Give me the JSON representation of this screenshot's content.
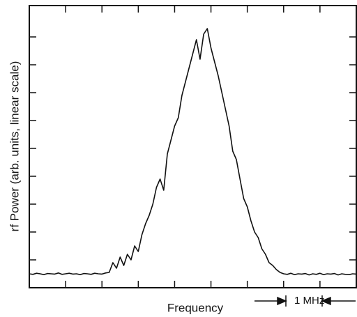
{
  "chart_data": {
    "type": "line",
    "x_label": "Frequency",
    "y_label": "rf Power (arb. units, linear scale)",
    "annotation": "1 MHz",
    "color": "#111111",
    "xlim": [
      0,
      9
    ],
    "xticks": [
      1,
      2,
      3,
      4,
      5,
      6,
      7,
      8
    ],
    "ylim": [
      0,
      10
    ],
    "yticks": [
      1,
      2,
      3,
      4,
      5,
      6,
      7,
      8,
      9
    ],
    "x": [
      0.0,
      0.1,
      0.2,
      0.3,
      0.4,
      0.5,
      0.6,
      0.7,
      0.8,
      0.9,
      1.0,
      1.1,
      1.2,
      1.3,
      1.4,
      1.5,
      1.6,
      1.7,
      1.8,
      1.9,
      2.0,
      2.1,
      2.2,
      2.3,
      2.4,
      2.5,
      2.6,
      2.7,
      2.8,
      2.9,
      3.0,
      3.1,
      3.2,
      3.3,
      3.4,
      3.5,
      3.6,
      3.7,
      3.8,
      3.9,
      4.0,
      4.1,
      4.2,
      4.3,
      4.4,
      4.5,
      4.6,
      4.7,
      4.8,
      4.9,
      5.0,
      5.1,
      5.2,
      5.3,
      5.4,
      5.5,
      5.6,
      5.7,
      5.8,
      5.9,
      6.0,
      6.1,
      6.2,
      6.3,
      6.4,
      6.5,
      6.6,
      6.7,
      6.8,
      6.9,
      7.0,
      7.1,
      7.2,
      7.3,
      7.4,
      7.5,
      7.6,
      7.7,
      7.8,
      7.9,
      8.0,
      8.1,
      8.2,
      8.3,
      8.4,
      8.5,
      8.6,
      8.7,
      8.8,
      8.9,
      9.0
    ],
    "values": [
      0.5,
      0.48,
      0.52,
      0.5,
      0.47,
      0.51,
      0.5,
      0.49,
      0.53,
      0.48,
      0.5,
      0.52,
      0.49,
      0.5,
      0.47,
      0.51,
      0.5,
      0.48,
      0.52,
      0.5,
      0.49,
      0.53,
      0.55,
      0.9,
      0.7,
      1.1,
      0.8,
      1.2,
      1.0,
      1.5,
      1.3,
      1.9,
      2.3,
      2.6,
      3.0,
      3.6,
      3.9,
      3.5,
      4.8,
      5.3,
      5.8,
      6.1,
      6.9,
      7.4,
      7.9,
      8.4,
      8.9,
      8.2,
      9.1,
      9.3,
      8.6,
      8.1,
      7.6,
      7.0,
      6.4,
      5.8,
      4.9,
      4.6,
      3.9,
      3.2,
      2.9,
      2.4,
      2.0,
      1.8,
      1.4,
      1.2,
      0.9,
      0.8,
      0.65,
      0.55,
      0.5,
      0.48,
      0.52,
      0.47,
      0.5,
      0.49,
      0.51,
      0.46,
      0.5,
      0.48,
      0.52,
      0.47,
      0.5,
      0.49,
      0.51,
      0.46,
      0.5,
      0.48,
      0.47,
      0.5,
      0.49
    ]
  }
}
